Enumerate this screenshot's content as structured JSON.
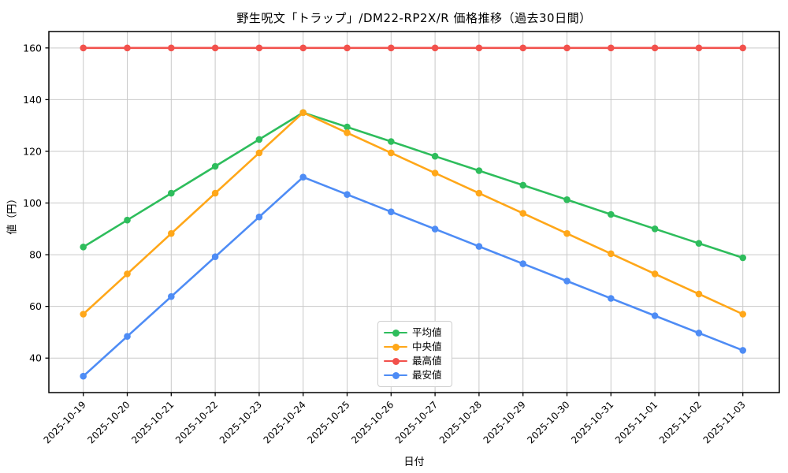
{
  "figure": {
    "background": "#ffffff",
    "grid_color": "#c9c9c9",
    "axis_color": "#000000",
    "tick_label_color": "#000000",
    "legend_border_color": "#cfcfcf"
  },
  "chart_data": {
    "type": "line",
    "title": "野生呪文「トラップ」/DM22-RP2X/R 価格推移（過去30日間）",
    "xlabel": "日付",
    "ylabel": "値（円）",
    "x": [
      "2025-10-19",
      "2025-10-20",
      "2025-10-21",
      "2025-10-22",
      "2025-10-23",
      "2025-10-24",
      "2025-10-25",
      "2025-10-26",
      "2025-10-27",
      "2025-10-28",
      "2025-10-29",
      "2025-10-30",
      "2025-10-31",
      "2025-11-01",
      "2025-11-02",
      "2025-11-03"
    ],
    "series": [
      {
        "key": "average",
        "name": "平均値",
        "color": "#2EBD5C",
        "marker": "circle",
        "values": [
          83,
          93.4,
          103.8,
          114.2,
          124.6,
          135,
          129.4,
          123.8,
          118.1,
          112.5,
          106.9,
          101.3,
          95.6,
          90,
          84.4,
          78.8
        ]
      },
      {
        "key": "median",
        "name": "中央値",
        "color": "#FFA719",
        "marker": "circle",
        "values": [
          57,
          72.6,
          88.2,
          103.8,
          119.4,
          135,
          127.2,
          119.4,
          111.6,
          103.8,
          96,
          88.2,
          80.4,
          72.6,
          64.8,
          57
        ]
      },
      {
        "key": "max",
        "name": "最高値",
        "color": "#F2514C",
        "marker": "circle",
        "values": [
          160,
          160,
          160,
          160,
          160,
          160,
          160,
          160,
          160,
          160,
          160,
          160,
          160,
          160,
          160,
          160
        ]
      },
      {
        "key": "min",
        "name": "最安値",
        "color": "#4E8CF5",
        "marker": "circle",
        "values": [
          33,
          48.4,
          63.8,
          79.2,
          94.6,
          110,
          103.3,
          96.6,
          89.9,
          83.2,
          76.5,
          69.8,
          63.1,
          56.4,
          49.7,
          43
        ]
      }
    ],
    "yticks": [
      40,
      60,
      80,
      100,
      120,
      140,
      160
    ],
    "ylim": [
      26.65,
      166.35
    ],
    "grid": true,
    "legend_position": "lower center"
  }
}
